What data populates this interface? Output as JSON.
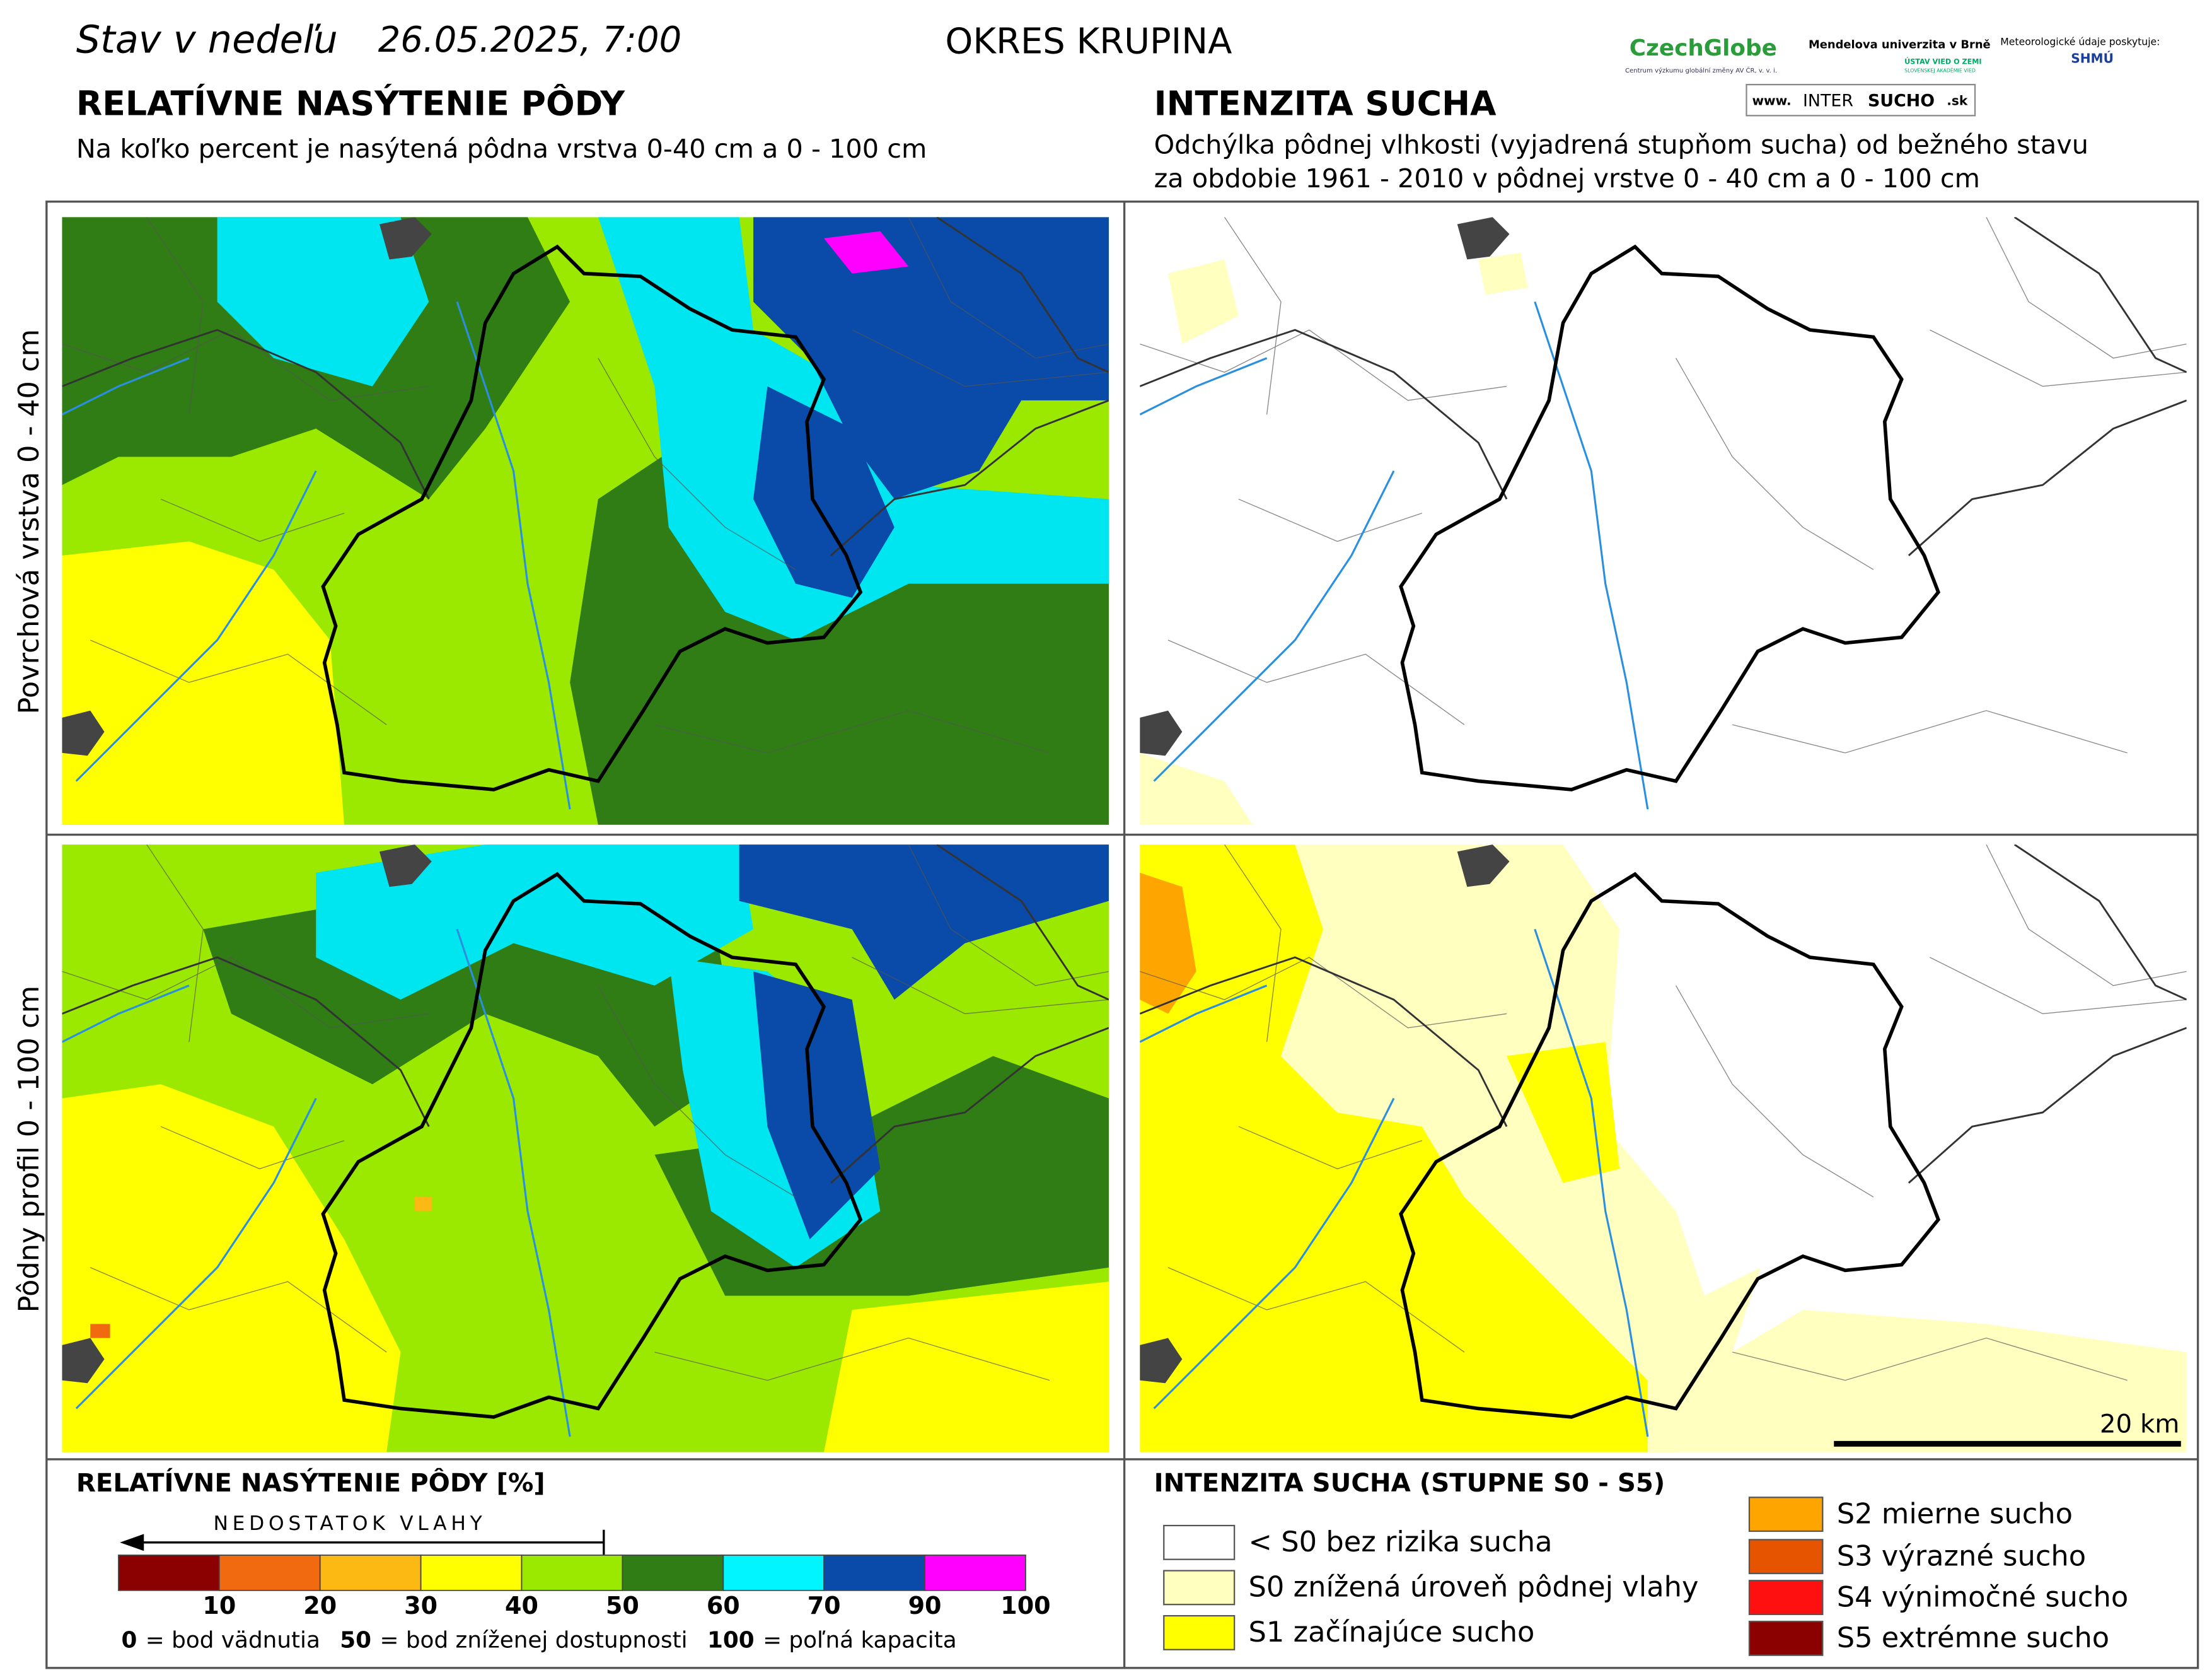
{
  "header": {
    "title": "Stav v nedeľu",
    "date": "26.05.2025, 7:00",
    "district": "OKRES  KRUPINA",
    "logos": {
      "czechglobe": "CzechGlobe",
      "czechglobe_sub": "Centrum výzkumu globální změny AV ČR, v. v. i.",
      "mendelu": "Mendelova univerzita v Brně",
      "uvz": "ÚSTAV VIED O ZEMI",
      "uvz_sub": "SLOVENSKEJ AKADÉMIE VIED",
      "meteo": "Meteorologické údaje poskytuje:",
      "shmu": "SHMÚ",
      "www": "www.",
      "intersucho_a": "INTER",
      "intersucho_b": "SUCHO",
      "sk": ".sk"
    }
  },
  "left": {
    "title": "RELATÍVNE NASÝTENIE PÔDY",
    "subtitle": "Na koľko percent je nasýtená pôdna vrstva 0-40 cm a 0 - 100 cm"
  },
  "right": {
    "title": "INTENZITA SUCHA",
    "subtitle_lines": [
      "Odchýlka pôdnej vlhkosti (vyjadrená stupňom sucha) od bežného stavu",
      "za obdobie 1961 - 2010 v pôdnej vrstve 0 - 40 cm a 0 - 100 cm"
    ]
  },
  "rows": [
    "Povrchová vrstva 0 - 40 cm",
    "Pôdny profil 0 - 100 cm"
  ],
  "scale_bar": "20 km",
  "legend_left": {
    "title": "RELATÍVNE NASÝTENIE PÔDY [%]",
    "arrow": "NEDOSTATOK VLAHY",
    "ticks": [
      10,
      20,
      30,
      40,
      50,
      60,
      70,
      90,
      100
    ],
    "colors": [
      "#8b0000",
      "#f26a10",
      "#fdb913",
      "#ffff00",
      "#9be800",
      "#2f7d14",
      "#00f5ff",
      "#0a4aa8",
      "#ff00ff"
    ],
    "notes": [
      {
        "key": "0",
        "text": "= bod vädnutia"
      },
      {
        "key": "50",
        "text": "= bod zníženej dostupnosti"
      },
      {
        "key": "100",
        "text": "= poľná kapacita"
      }
    ]
  },
  "legend_right": {
    "title": "INTENZITA SUCHA (STUPNE S0 - S5)",
    "items": [
      {
        "label": "< S0 bez rizika sucha",
        "color": "#ffffff"
      },
      {
        "label": "S0 znížená úroveň pôdnej vlahy",
        "color": "#ffffc0"
      },
      {
        "label": "S1 začínajúce sucho",
        "color": "#ffff00"
      },
      {
        "label": "S2 mierne sucho",
        "color": "#ffa500"
      },
      {
        "label": "S3 výrazné sucho",
        "color": "#e65400"
      },
      {
        "label": "S4 výnimočné sucho",
        "color": "#ff1010"
      },
      {
        "label": "S5 extrémne sucho",
        "color": "#8b0000"
      }
    ]
  }
}
